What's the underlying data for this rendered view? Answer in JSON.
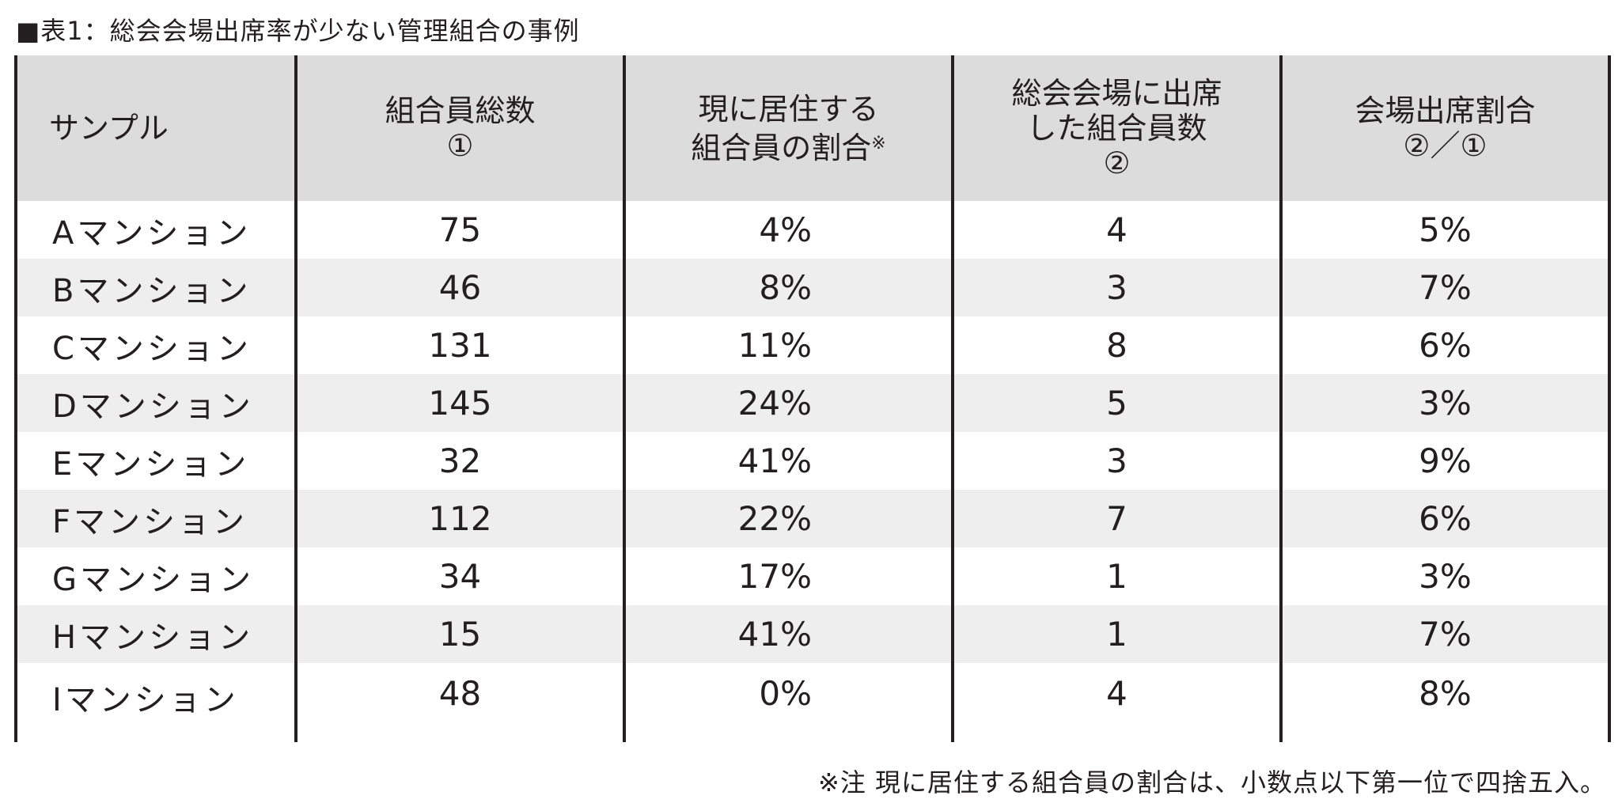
{
  "title": "■表1：総会会場出席率が少ない管理組合の事例",
  "headers": {
    "col1": "サンプル",
    "col2_line1": "組合員総数",
    "col2_line2": "①",
    "col3_line1": "現に居住する",
    "col3_line2": "組合員の割合",
    "col3_mark": "※",
    "col4_line1": "総会会場に出席",
    "col4_line2": "した組合員数",
    "col4_line3": "②",
    "col5_line1": "会場出席割合",
    "col5_line2": "②／①"
  },
  "rows": [
    {
      "name": "Aマンション",
      "total": "75",
      "resident_ratio": "4%",
      "attended": "4",
      "attendance_ratio": "5%"
    },
    {
      "name": "Bマンション",
      "total": "46",
      "resident_ratio": "8%",
      "attended": "3",
      "attendance_ratio": "7%"
    },
    {
      "name": "Cマンション",
      "total": "131",
      "resident_ratio": "11%",
      "attended": "8",
      "attendance_ratio": "6%"
    },
    {
      "name": "Dマンション",
      "total": "145",
      "resident_ratio": "24%",
      "attended": "5",
      "attendance_ratio": "3%"
    },
    {
      "name": "Eマンション",
      "total": "32",
      "resident_ratio": "41%",
      "attended": "3",
      "attendance_ratio": "9%"
    },
    {
      "name": "Fマンション",
      "total": "112",
      "resident_ratio": "22%",
      "attended": "7",
      "attendance_ratio": "6%"
    },
    {
      "name": "Gマンション",
      "total": "34",
      "resident_ratio": "17%",
      "attended": "1",
      "attendance_ratio": "3%"
    },
    {
      "name": "Hマンション",
      "total": "15",
      "resident_ratio": "41%",
      "attended": "1",
      "attendance_ratio": "7%"
    },
    {
      "name": "Iマンション",
      "total": "48",
      "resident_ratio": "0%",
      "attended": "4",
      "attendance_ratio": "8%"
    }
  ],
  "note": "※注 現に居住する組合員の割合は、小数点以下第一位で四捨五入。",
  "colors": {
    "header_bg": "#dcdcdc",
    "stripe_bg": "#eeeeee",
    "rule": "#231f20"
  }
}
